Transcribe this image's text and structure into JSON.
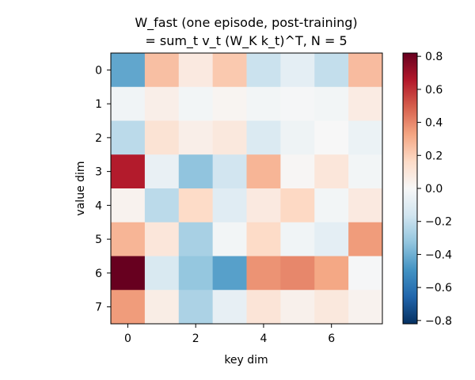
{
  "chart_data": {
    "type": "heatmap",
    "title_lines": [
      "W_fast (one episode, post-training)",
      "= sum_t v_t (W_K k_t)^T,  N = 5"
    ],
    "xlabel": "key dim",
    "ylabel": "value dim",
    "x_ticks": [
      0,
      2,
      4,
      6
    ],
    "y_ticks": [
      0,
      1,
      2,
      3,
      4,
      5,
      6,
      7
    ],
    "rows": 8,
    "cols": 8,
    "values": [
      [
        -0.43,
        0.25,
        0.08,
        0.22,
        -0.18,
        -0.08,
        -0.2,
        0.26
      ],
      [
        -0.03,
        0.05,
        -0.02,
        0.02,
        -0.02,
        -0.01,
        -0.02,
        0.07
      ],
      [
        -0.22,
        0.12,
        0.05,
        0.09,
        -0.12,
        -0.04,
        0.0,
        -0.05
      ],
      [
        0.65,
        -0.06,
        -0.33,
        -0.16,
        0.28,
        0.01,
        0.1,
        -0.02
      ],
      [
        0.03,
        -0.22,
        0.16,
        -0.1,
        0.08,
        0.17,
        -0.02,
        0.08
      ],
      [
        0.28,
        0.1,
        -0.27,
        -0.02,
        0.16,
        -0.03,
        -0.08,
        0.35
      ],
      [
        0.82,
        -0.13,
        -0.32,
        -0.45,
        0.37,
        0.4,
        0.32,
        -0.01
      ],
      [
        0.35,
        0.06,
        -0.26,
        -0.07,
        0.11,
        0.04,
        0.09,
        0.03
      ]
    ],
    "colorbar": {
      "vmin": -0.82,
      "vmax": 0.82,
      "ticks": [
        -0.8,
        -0.6,
        -0.4,
        -0.2,
        0.0,
        0.2,
        0.4,
        0.6,
        0.8
      ],
      "tick_labels": [
        "−0.8",
        "−0.6",
        "−0.4",
        "−0.2",
        "0.0",
        "0.2",
        "0.4",
        "0.6",
        "0.8"
      ],
      "colormap": "RdBu_r"
    },
    "grid": false,
    "legend": "none"
  }
}
